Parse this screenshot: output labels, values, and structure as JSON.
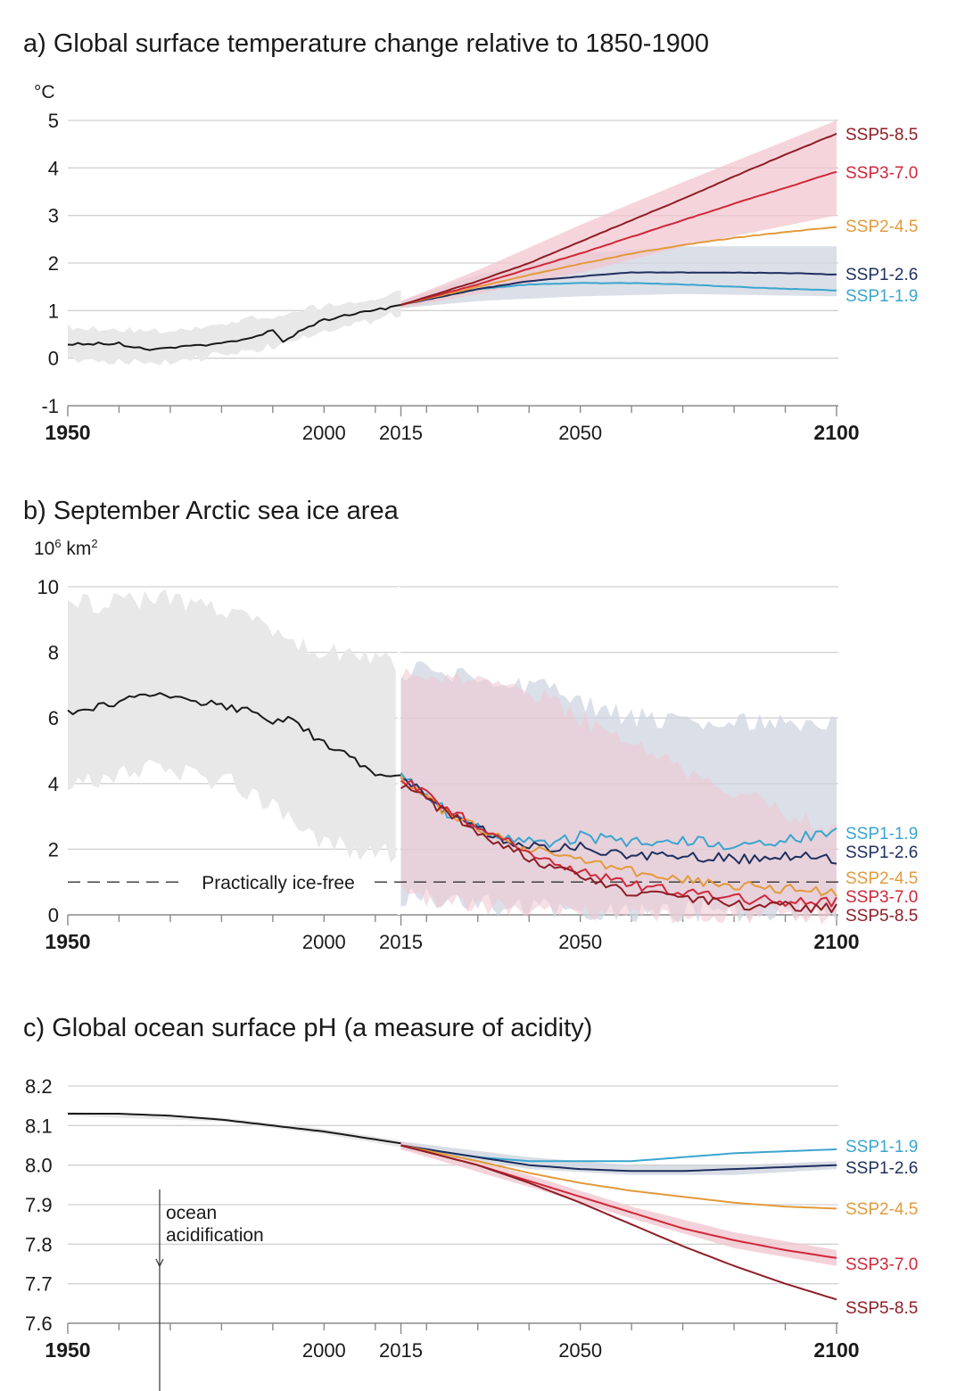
{
  "colors": {
    "historical": "#1a1a1a",
    "SSP1-1.9": "#3aa5cf",
    "SSP1-2.6": "#1f2f5e",
    "SSP2-4.5": "#e29a3c",
    "SSP3-7.0": "#d0273a",
    "SSP5-8.5": "#8e1d25",
    "band_historical": "#e8e8e8",
    "band_low": "#cfd4e0",
    "band_high": "#f1c7cf"
  },
  "x_axis": {
    "ticks": [
      "1950",
      "2000",
      "2015",
      "2050",
      "2100"
    ],
    "bold_ticks": [
      "1950",
      "2100"
    ]
  },
  "panels": {
    "a": {
      "title": "a) Global surface temperature change relative to 1850-1900",
      "unit": "°C",
      "yticks": [
        "5",
        "4",
        "3",
        "2",
        "1",
        "0",
        "-1"
      ]
    },
    "b": {
      "title": "b) September Arctic sea ice area",
      "unit_base": "10",
      "unit_exp": "6",
      "unit_mid": " km",
      "unit_exp2": "2",
      "yticks": [
        "10",
        "8",
        "6",
        "4",
        "2",
        "0"
      ],
      "threshold_label": "Practically ice-free"
    },
    "c": {
      "title": "c) Global ocean surface pH (a measure of acidity)",
      "yticks": [
        "8.2",
        "8.1",
        "8.0",
        "7.9",
        "7.8",
        "7.7",
        "7.6"
      ],
      "annotation_line1": "ocean",
      "annotation_line2": "acidification"
    }
  },
  "chart_data": [
    {
      "type": "line",
      "title": "a) Global surface temperature change relative to 1850-1900",
      "ylabel": "°C",
      "xlim": [
        1950,
        2100
      ],
      "ylim": [
        -1,
        5
      ],
      "grid": true,
      "legend": "right-end labels",
      "series": [
        {
          "name": "historical",
          "x": [
            1950,
            1955,
            1960,
            1965,
            1970,
            1975,
            1980,
            1985,
            1990,
            1992,
            1995,
            2000,
            2005,
            2010,
            2015
          ],
          "values": [
            0.3,
            0.3,
            0.31,
            0.18,
            0.22,
            0.26,
            0.3,
            0.38,
            0.58,
            0.35,
            0.55,
            0.8,
            0.92,
            1.0,
            1.12
          ]
        },
        {
          "name": "SSP1-1.9",
          "x": [
            2015,
            2030,
            2040,
            2050,
            2060,
            2070,
            2080,
            2090,
            2100
          ],
          "values": [
            1.12,
            1.45,
            1.55,
            1.58,
            1.58,
            1.55,
            1.5,
            1.46,
            1.42
          ]
        },
        {
          "name": "SSP1-2.6",
          "x": [
            2015,
            2030,
            2040,
            2050,
            2060,
            2070,
            2080,
            2090,
            2100
          ],
          "values": [
            1.12,
            1.45,
            1.62,
            1.72,
            1.8,
            1.8,
            1.8,
            1.79,
            1.76
          ]
        },
        {
          "name": "SSP2-4.5",
          "x": [
            2015,
            2030,
            2040,
            2050,
            2060,
            2070,
            2080,
            2090,
            2100
          ],
          "values": [
            1.12,
            1.5,
            1.75,
            1.98,
            2.2,
            2.38,
            2.53,
            2.65,
            2.76
          ]
        },
        {
          "name": "SSP3-7.0",
          "x": [
            2015,
            2030,
            2040,
            2050,
            2060,
            2070,
            2080,
            2090,
            2100
          ],
          "values": [
            1.12,
            1.55,
            1.88,
            2.2,
            2.55,
            2.9,
            3.25,
            3.58,
            3.92
          ]
        },
        {
          "name": "SSP5-8.5",
          "x": [
            2015,
            2030,
            2040,
            2050,
            2060,
            2070,
            2080,
            2090,
            2100
          ],
          "values": [
            1.12,
            1.62,
            2.0,
            2.45,
            2.9,
            3.35,
            3.82,
            4.28,
            4.72
          ]
        }
      ],
      "bands": [
        {
          "name": "historical",
          "x": [
            1950,
            1970,
            1990,
            2015
          ],
          "lower": [
            -0.05,
            -0.1,
            0.25,
            0.95
          ],
          "upper": [
            0.65,
            0.55,
            0.9,
            1.35
          ]
        },
        {
          "name": "SSP1-2.6",
          "x": [
            2015,
            2030,
            2050,
            2070,
            2100
          ],
          "lower": [
            1.05,
            1.2,
            1.3,
            1.35,
            1.3
          ],
          "upper": [
            1.2,
            1.75,
            2.2,
            2.35,
            2.35
          ]
        },
        {
          "name": "SSP3-7.0",
          "x": [
            2015,
            2030,
            2050,
            2070,
            2100
          ],
          "lower": [
            1.05,
            1.35,
            1.8,
            2.35,
            3.0
          ],
          "upper": [
            1.2,
            1.85,
            2.8,
            3.7,
            5.0
          ]
        }
      ]
    },
    {
      "type": "line",
      "title": "b) September Arctic sea ice area",
      "ylabel": "10^6 km^2",
      "xlim": [
        1950,
        2100
      ],
      "ylim": [
        0,
        10
      ],
      "grid": true,
      "legend": "right-end labels",
      "threshold": {
        "label": "Practically ice-free",
        "value": 1
      },
      "series": [
        {
          "name": "historical",
          "x": [
            1950,
            1955,
            1960,
            1965,
            1970,
            1975,
            1980,
            1985,
            1990,
            1993,
            1996,
            2000,
            2005,
            2010,
            2015
          ],
          "values": [
            6.2,
            6.3,
            6.5,
            6.8,
            6.6,
            6.5,
            6.4,
            6.2,
            5.9,
            6.0,
            5.7,
            5.2,
            4.8,
            4.3,
            4.3
          ]
        },
        {
          "name": "SSP1-1.9",
          "x": [
            2015,
            2025,
            2035,
            2045,
            2050,
            2060,
            2070,
            2080,
            2090,
            2100
          ],
          "values": [
            4.3,
            3.0,
            2.4,
            2.2,
            2.4,
            2.2,
            2.3,
            2.1,
            2.3,
            2.5
          ]
        },
        {
          "name": "SSP1-2.6",
          "x": [
            2015,
            2025,
            2035,
            2045,
            2050,
            2060,
            2070,
            2080,
            2090,
            2100
          ],
          "values": [
            4.2,
            3.0,
            2.3,
            2.0,
            2.1,
            1.8,
            1.8,
            1.7,
            1.8,
            1.7
          ]
        },
        {
          "name": "SSP2-4.5",
          "x": [
            2015,
            2025,
            2035,
            2045,
            2050,
            2060,
            2070,
            2080,
            2090,
            2100
          ],
          "values": [
            4.1,
            3.0,
            2.3,
            1.8,
            1.6,
            1.3,
            1.1,
            0.9,
            0.8,
            0.7
          ]
        },
        {
          "name": "SSP3-7.0",
          "x": [
            2015,
            2025,
            2035,
            2045,
            2050,
            2060,
            2070,
            2080,
            2090,
            2100
          ],
          "values": [
            4.2,
            3.1,
            2.3,
            1.5,
            1.3,
            0.9,
            0.7,
            0.5,
            0.4,
            0.4
          ]
        },
        {
          "name": "SSP5-8.5",
          "x": [
            2015,
            2025,
            2035,
            2045,
            2050,
            2060,
            2070,
            2080,
            2090,
            2100
          ],
          "values": [
            4.0,
            3.0,
            2.1,
            1.4,
            1.1,
            0.7,
            0.5,
            0.3,
            0.25,
            0.2
          ]
        }
      ]
    },
    {
      "type": "line",
      "title": "c) Global ocean surface pH (a measure of acidity)",
      "xlim": [
        1950,
        2100
      ],
      "ylim": [
        7.6,
        8.2
      ],
      "grid": true,
      "legend": "right-end labels",
      "series": [
        {
          "name": "historical",
          "x": [
            1950,
            1960,
            1970,
            1980,
            1990,
            2000,
            2010,
            2015
          ],
          "values": [
            8.13,
            8.13,
            8.125,
            8.115,
            8.1,
            8.085,
            8.065,
            8.055
          ]
        },
        {
          "name": "SSP1-1.9",
          "x": [
            2015,
            2030,
            2040,
            2050,
            2060,
            2070,
            2080,
            2090,
            2100
          ],
          "values": [
            8.05,
            8.02,
            8.01,
            8.01,
            8.01,
            8.02,
            8.03,
            8.035,
            8.04
          ]
        },
        {
          "name": "SSP1-2.6",
          "x": [
            2015,
            2030,
            2040,
            2050,
            2060,
            2070,
            2080,
            2090,
            2100
          ],
          "values": [
            8.05,
            8.02,
            8.0,
            7.99,
            7.985,
            7.985,
            7.99,
            7.995,
            8.0
          ]
        },
        {
          "name": "SSP2-4.5",
          "x": [
            2015,
            2030,
            2040,
            2050,
            2060,
            2070,
            2080,
            2090,
            2100
          ],
          "values": [
            8.05,
            8.01,
            7.98,
            7.955,
            7.935,
            7.92,
            7.905,
            7.895,
            7.89
          ]
        },
        {
          "name": "SSP3-7.0",
          "x": [
            2015,
            2030,
            2040,
            2050,
            2060,
            2070,
            2080,
            2090,
            2100
          ],
          "values": [
            8.05,
            8.0,
            7.96,
            7.92,
            7.88,
            7.84,
            7.81,
            7.785,
            7.765
          ]
        },
        {
          "name": "SSP5-8.5",
          "x": [
            2015,
            2030,
            2040,
            2050,
            2060,
            2070,
            2080,
            2090,
            2100
          ],
          "values": [
            8.05,
            8.0,
            7.955,
            7.905,
            7.85,
            7.795,
            7.745,
            7.7,
            7.66
          ]
        }
      ]
    }
  ]
}
